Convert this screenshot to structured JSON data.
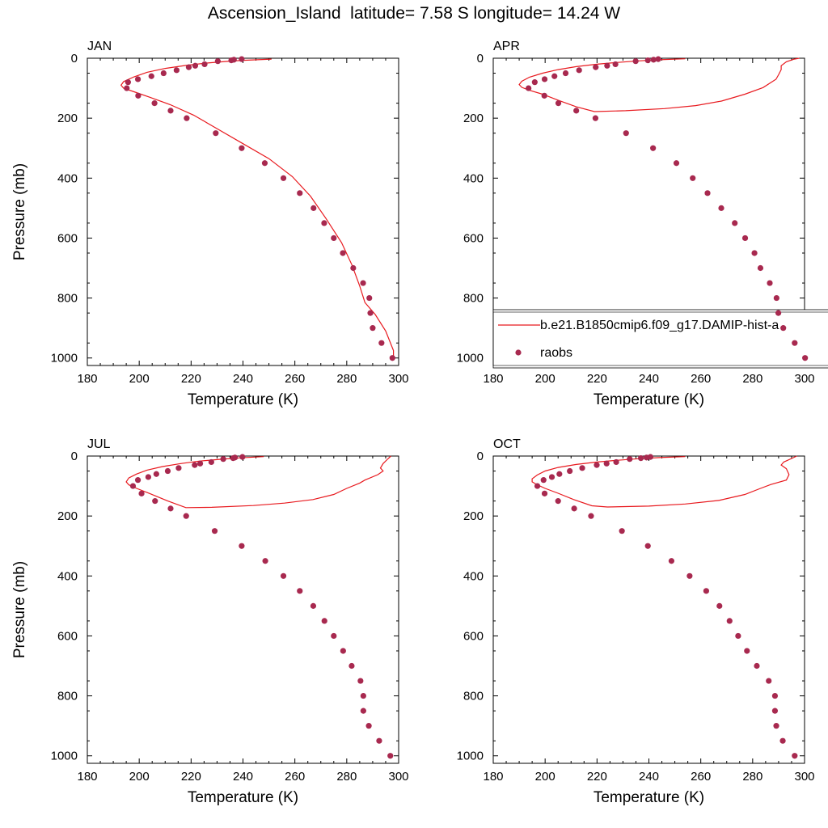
{
  "figure": {
    "title": "Ascension_Island  latitude= 7.58 S longitude= 14.24 W"
  },
  "legend": {
    "model_label": "b.e21.B1850cmip6.f09_g17.DAMIP-hist-a",
    "obs_label": "raobs",
    "model_color": "#e8191e",
    "obs_color": "#a8294f"
  },
  "chart_data": [
    {
      "type": "line+scatter",
      "panel_title": "JAN",
      "xlabel": "Temperature (K)",
      "ylabel": "Pressure (mb)",
      "xlim": [
        180,
        300
      ],
      "ylim": [
        1025,
        0
      ],
      "x_ticks": [
        180,
        200,
        220,
        240,
        260,
        280,
        300
      ],
      "y_ticks": [
        0,
        200,
        400,
        600,
        800,
        1000
      ],
      "series": [
        {
          "name": "b.e21.B1850cmip6.f09_g17.DAMIP-hist-a",
          "style": "line",
          "points": [
            [
              251,
              3
            ],
            [
              240,
              7
            ],
            [
              233,
              11
            ],
            [
              225,
              17
            ],
            [
              218,
              24
            ],
            [
              210,
              34
            ],
            [
              203,
              47
            ],
            [
              198,
              62
            ],
            [
              194,
              78
            ],
            [
              193,
              90
            ],
            [
              194,
              100
            ],
            [
              198,
              112
            ],
            [
              204,
              130
            ],
            [
              212,
              155
            ],
            [
              221,
              190
            ],
            [
              230,
              235
            ],
            [
              240,
              285
            ],
            [
              250,
              335
            ],
            [
              259,
              395
            ],
            [
              266,
              460
            ],
            [
              272,
              535
            ],
            [
              278,
              615
            ],
            [
              282,
              690
            ],
            [
              285,
              760
            ],
            [
              287,
              815
            ],
            [
              291,
              855
            ],
            [
              295,
              910
            ],
            [
              298,
              975
            ],
            [
              298,
              1000
            ]
          ]
        },
        {
          "name": "raobs",
          "style": "markers",
          "points": [
            [
              239.5,
              3
            ],
            [
              236.5,
              5
            ],
            [
              235.5,
              7
            ],
            [
              230.3,
              10
            ],
            [
              225.2,
              20
            ],
            [
              221.6,
              25
            ],
            [
              219.1,
              30
            ],
            [
              214.4,
              40
            ],
            [
              209.4,
              50
            ],
            [
              204.7,
              60
            ],
            [
              199.5,
              70
            ],
            [
              195.7,
              80
            ],
            [
              195.2,
              100
            ],
            [
              199.6,
              125
            ],
            [
              205.9,
              150
            ],
            [
              212.1,
              175
            ],
            [
              218.3,
              200
            ],
            [
              229.5,
              250
            ],
            [
              239.5,
              300
            ],
            [
              248.4,
              350
            ],
            [
              255.6,
              400
            ],
            [
              261.9,
              450
            ],
            [
              267.2,
              500
            ],
            [
              271.3,
              550
            ],
            [
              275.0,
              600
            ],
            [
              278.5,
              650
            ],
            [
              282.5,
              700
            ],
            [
              286.3,
              750
            ],
            [
              288.7,
              800
            ],
            [
              289.1,
              850
            ],
            [
              290.0,
              900
            ],
            [
              293.4,
              950
            ],
            [
              297.6,
              1000
            ]
          ]
        }
      ]
    },
    {
      "type": "line+scatter",
      "panel_title": "APR",
      "xlabel": "Temperature (K)",
      "ylabel": "",
      "xlim": [
        180,
        300
      ],
      "ylim": [
        1025,
        0
      ],
      "x_ticks": [
        180,
        200,
        220,
        240,
        260,
        280,
        300
      ],
      "y_ticks": [
        0,
        200,
        400,
        600,
        800,
        1000
      ],
      "legend": "inside, lower right",
      "series": [
        {
          "name": "b.e21.B1850cmip6.f09_g17.DAMIP-hist-a",
          "style": "line",
          "points": [
            [
              254,
              2
            ],
            [
              244,
              5
            ],
            [
              236,
              9
            ],
            [
              228,
              14
            ],
            [
              220,
              20
            ],
            [
              212,
              28
            ],
            [
              205,
              38
            ],
            [
              199,
              50
            ],
            [
              194,
              63
            ],
            [
              191,
              77
            ],
            [
              190,
              88
            ],
            [
              191,
              97
            ],
            [
              194,
              107
            ],
            [
              199,
              120
            ],
            [
              205,
              140
            ],
            [
              212,
              162
            ],
            [
              219,
              178
            ],
            [
              231,
              175
            ],
            [
              246,
              168
            ],
            [
              258,
              158
            ],
            [
              268,
              143
            ],
            [
              277,
              120
            ],
            [
              284,
              98
            ],
            [
              289,
              70
            ],
            [
              290,
              55
            ],
            [
              291,
              38
            ],
            [
              291,
              25
            ],
            [
              293,
              12
            ],
            [
              296,
              3
            ],
            [
              298,
              0
            ]
          ]
        },
        {
          "name": "raobs",
          "style": "markers",
          "points": [
            [
              243.6,
              3
            ],
            [
              241.8,
              5
            ],
            [
              239.6,
              7
            ],
            [
              234.9,
              10
            ],
            [
              227.1,
              20
            ],
            [
              223.9,
              25
            ],
            [
              219.5,
              30
            ],
            [
              213.1,
              40
            ],
            [
              207.9,
              50
            ],
            [
              203.6,
              60
            ],
            [
              199.8,
              70
            ],
            [
              196.0,
              80
            ],
            [
              193.6,
              100
            ],
            [
              199.7,
              125
            ],
            [
              205.1,
              150
            ],
            [
              212.0,
              175
            ],
            [
              219.4,
              200
            ],
            [
              231.2,
              250
            ],
            [
              241.6,
              300
            ],
            [
              250.6,
              350
            ],
            [
              256.9,
              400
            ],
            [
              262.6,
              450
            ],
            [
              267.9,
              500
            ],
            [
              273.1,
              550
            ],
            [
              277.1,
              600
            ],
            [
              280.7,
              650
            ],
            [
              283.0,
              700
            ],
            [
              286.6,
              750
            ],
            [
              289.2,
              800
            ],
            [
              289.9,
              850
            ],
            [
              291.8,
              900
            ],
            [
              296.2,
              950
            ],
            [
              300.2,
              1000
            ]
          ]
        }
      ]
    },
    {
      "type": "line+scatter",
      "panel_title": "JUL",
      "xlabel": "Temperature (K)",
      "ylabel": "Pressure (mb)",
      "xlim": [
        180,
        300
      ],
      "ylim": [
        1025,
        0
      ],
      "x_ticks": [
        180,
        200,
        220,
        240,
        260,
        280,
        300
      ],
      "y_ticks": [
        0,
        200,
        400,
        600,
        800,
        1000
      ],
      "series": [
        {
          "name": "b.e21.B1850cmip6.f09_g17.DAMIP-hist-a",
          "style": "line",
          "points": [
            [
              248,
              2
            ],
            [
              239,
              6
            ],
            [
              231,
              11
            ],
            [
              223,
              17
            ],
            [
              216,
              25
            ],
            [
              209,
              35
            ],
            [
              203,
              47
            ],
            [
              199,
              60
            ],
            [
              196,
              73
            ],
            [
              195,
              86
            ],
            [
              196,
              96
            ],
            [
              199,
              108
            ],
            [
              204,
              125
            ],
            [
              211,
              150
            ],
            [
              218,
              172
            ],
            [
              228,
              171
            ],
            [
              244,
              165
            ],
            [
              256,
              157
            ],
            [
              267,
              145
            ],
            [
              275,
              128
            ],
            [
              280,
              108
            ],
            [
              285,
              90
            ],
            [
              287,
              80
            ],
            [
              292,
              62
            ],
            [
              294,
              50
            ],
            [
              293,
              40
            ],
            [
              294,
              25
            ],
            [
              296,
              8
            ],
            [
              297,
              0
            ]
          ]
        },
        {
          "name": "raobs",
          "style": "markers",
          "points": [
            [
              239.8,
              3
            ],
            [
              236.9,
              5
            ],
            [
              236.2,
              7
            ],
            [
              232.4,
              10
            ],
            [
              227.8,
              20
            ],
            [
              223.5,
              25
            ],
            [
              221.4,
              30
            ],
            [
              215.2,
              40
            ],
            [
              211.0,
              50
            ],
            [
              206.6,
              60
            ],
            [
              203.5,
              70
            ],
            [
              199.5,
              80
            ],
            [
              197.6,
              100
            ],
            [
              200.9,
              125
            ],
            [
              206.1,
              150
            ],
            [
              212.1,
              175
            ],
            [
              218.1,
              200
            ],
            [
              229.1,
              250
            ],
            [
              239.5,
              300
            ],
            [
              248.6,
              350
            ],
            [
              255.6,
              400
            ],
            [
              261.9,
              450
            ],
            [
              267.1,
              500
            ],
            [
              271.4,
              550
            ],
            [
              275.0,
              600
            ],
            [
              278.6,
              650
            ],
            [
              281.9,
              700
            ],
            [
              285.3,
              750
            ],
            [
              286.4,
              800
            ],
            [
              286.4,
              850
            ],
            [
              288.5,
              900
            ],
            [
              292.5,
              950
            ],
            [
              296.8,
              1000
            ]
          ]
        }
      ]
    },
    {
      "type": "line+scatter",
      "panel_title": "OCT",
      "xlabel": "Temperature (K)",
      "ylabel": "",
      "xlim": [
        180,
        300
      ],
      "ylim": [
        1025,
        0
      ],
      "x_ticks": [
        180,
        200,
        220,
        240,
        260,
        280,
        300
      ],
      "y_ticks": [
        0,
        200,
        400,
        600,
        800,
        1000
      ],
      "series": [
        {
          "name": "b.e21.B1850cmip6.f09_g17.DAMIP-hist-a",
          "style": "line",
          "points": [
            [
              254,
              2
            ],
            [
              244,
              5
            ],
            [
              236,
              9
            ],
            [
              228,
              14
            ],
            [
              220,
              20
            ],
            [
              212,
              28
            ],
            [
              205,
              38
            ],
            [
              200,
              50
            ],
            [
              197,
              63
            ],
            [
              195,
              76
            ],
            [
              195,
              86
            ],
            [
              197,
              96
            ],
            [
              200,
              108
            ],
            [
              205,
              124
            ],
            [
              211,
              145
            ],
            [
              218,
              166
            ],
            [
              224,
              170
            ],
            [
              240,
              167
            ],
            [
              254,
              160
            ],
            [
              267,
              148
            ],
            [
              277,
              128
            ],
            [
              283,
              108
            ],
            [
              287,
              95
            ],
            [
              293,
              80
            ],
            [
              294,
              62
            ],
            [
              293,
              42
            ],
            [
              291,
              30
            ],
            [
              292,
              20
            ],
            [
              295,
              8
            ],
            [
              297,
              0
            ]
          ]
        },
        {
          "name": "raobs",
          "style": "markers",
          "points": [
            [
              240.6,
              3
            ],
            [
              239.1,
              5
            ],
            [
              236.9,
              7
            ],
            [
              232.6,
              10
            ],
            [
              227.4,
              20
            ],
            [
              223.7,
              25
            ],
            [
              219.9,
              30
            ],
            [
              214.3,
              40
            ],
            [
              209.5,
              50
            ],
            [
              205.5,
              60
            ],
            [
              202.6,
              70
            ],
            [
              199.4,
              80
            ],
            [
              197.0,
              100
            ],
            [
              199.8,
              125
            ],
            [
              205.0,
              150
            ],
            [
              211.2,
              175
            ],
            [
              217.7,
              200
            ],
            [
              229.6,
              250
            ],
            [
              239.6,
              300
            ],
            [
              248.7,
              350
            ],
            [
              255.7,
              400
            ],
            [
              262.1,
              450
            ],
            [
              267.2,
              500
            ],
            [
              271.1,
              550
            ],
            [
              274.4,
              600
            ],
            [
              277.8,
              650
            ],
            [
              281.6,
              700
            ],
            [
              286.2,
              750
            ],
            [
              288.6,
              800
            ],
            [
              288.6,
              850
            ],
            [
              289.1,
              900
            ],
            [
              291.6,
              950
            ],
            [
              296.2,
              1000
            ]
          ]
        }
      ]
    }
  ]
}
